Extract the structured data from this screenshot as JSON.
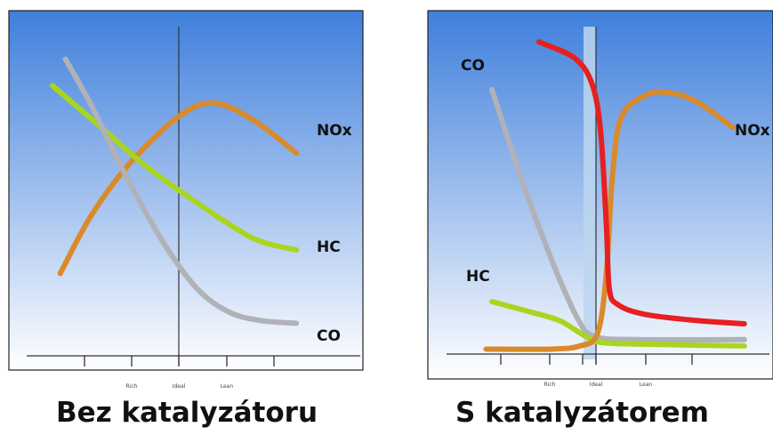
{
  "colors": {
    "co": "#b1b1b8",
    "hc": "#a9d51f",
    "nox": "#d98a2a",
    "red": "#e62020",
    "bg_top": "#3f7fdc",
    "bg_bottom": "#ffffff"
  },
  "chart_data": [
    {
      "type": "line",
      "caption": "Bez katalyzátoru",
      "tick_labels": [
        "Rich",
        "Ideal",
        "Lean"
      ],
      "ideal_marker": "Ideal",
      "series": [
        {
          "name": "NOx",
          "color_key": "nox",
          "points": [
            [
              0.06,
              0.22
            ],
            [
              0.18,
              0.42
            ],
            [
              0.33,
              0.6
            ],
            [
              0.52,
              0.76
            ],
            [
              0.65,
              0.8
            ],
            [
              0.8,
              0.74
            ],
            [
              0.96,
              0.63
            ]
          ]
        },
        {
          "name": "HC",
          "color_key": "hc",
          "points": [
            [
              0.03,
              0.86
            ],
            [
              0.2,
              0.73
            ],
            [
              0.38,
              0.59
            ],
            [
              0.55,
              0.48
            ],
            [
              0.7,
              0.39
            ],
            [
              0.82,
              0.33
            ],
            [
              0.96,
              0.3
            ]
          ]
        },
        {
          "name": "CO",
          "color_key": "co",
          "points": [
            [
              0.08,
              0.95
            ],
            [
              0.18,
              0.79
            ],
            [
              0.3,
              0.57
            ],
            [
              0.45,
              0.33
            ],
            [
              0.58,
              0.17
            ],
            [
              0.7,
              0.09
            ],
            [
              0.82,
              0.06
            ],
            [
              0.96,
              0.05
            ]
          ]
        }
      ]
    },
    {
      "type": "line",
      "caption": "S katalyzátorem",
      "tick_labels": [
        "Rich",
        "Ideal",
        "Lean"
      ],
      "ideal_marker": "Ideal",
      "series": [
        {
          "name": "CO",
          "color_key": "co",
          "points": [
            [
              0.1,
              0.83
            ],
            [
              0.2,
              0.55
            ],
            [
              0.3,
              0.3
            ],
            [
              0.39,
              0.11
            ],
            [
              0.45,
              0.05
            ],
            [
              0.6,
              0.04
            ],
            [
              0.96,
              0.04
            ]
          ]
        },
        {
          "name": "HC",
          "color_key": "hc",
          "points": [
            [
              0.1,
              0.16
            ],
            [
              0.22,
              0.13
            ],
            [
              0.33,
              0.1
            ],
            [
              0.42,
              0.05
            ],
            [
              0.48,
              0.03
            ],
            [
              0.65,
              0.025
            ],
            [
              0.96,
              0.02
            ]
          ]
        },
        {
          "name": "NOx",
          "color_key": "nox",
          "points": [
            [
              0.08,
              0.01
            ],
            [
              0.3,
              0.01
            ],
            [
              0.4,
              0.02
            ],
            [
              0.46,
              0.06
            ],
            [
              0.49,
              0.25
            ],
            [
              0.51,
              0.55
            ],
            [
              0.54,
              0.74
            ],
            [
              0.62,
              0.81
            ],
            [
              0.7,
              0.82
            ],
            [
              0.8,
              0.79
            ],
            [
              0.92,
              0.71
            ]
          ]
        },
        {
          "name": "",
          "color_key": "red",
          "points": [
            [
              0.26,
              0.98
            ],
            [
              0.38,
              0.93
            ],
            [
              0.44,
              0.85
            ],
            [
              0.47,
              0.7
            ],
            [
              0.49,
              0.4
            ],
            [
              0.5,
              0.2
            ],
            [
              0.53,
              0.15
            ],
            [
              0.62,
              0.12
            ],
            [
              0.8,
              0.1
            ],
            [
              0.96,
              0.09
            ]
          ]
        }
      ]
    }
  ]
}
